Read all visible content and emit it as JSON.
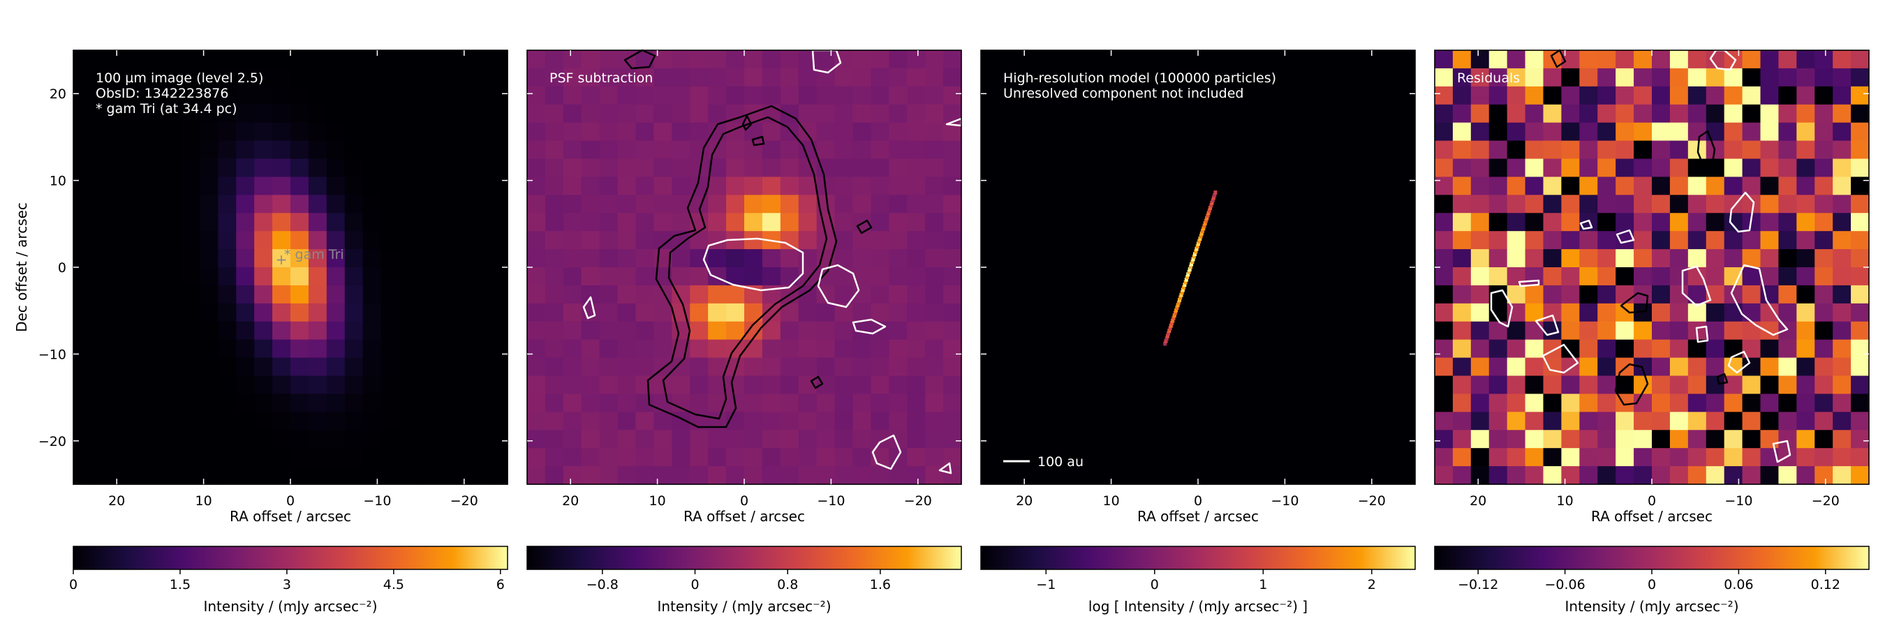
{
  "figure": {
    "ylabel": "Dec offset / arcsec",
    "xlabel": "RA offset / arcsec",
    "xticks": [
      20,
      10,
      0,
      -10,
      -20
    ],
    "yticks": [
      20,
      10,
      0,
      -10,
      -20
    ],
    "xlim": [
      25,
      -25
    ],
    "ylim": [
      -25,
      25
    ]
  },
  "panels": [
    {
      "id": "image",
      "annotation_lines": [
        "100 µm image (level 2.5)",
        "ObsID: 1342223876",
        "* gam Tri (at 34.4 pc)"
      ],
      "marker_label": "* gam Tri",
      "colorbar": {
        "label": "Intensity / (mJy arcsec⁻²)",
        "ticks": [
          "0",
          "1.5",
          "3",
          "4.5",
          "6"
        ],
        "range": [
          0,
          6.1
        ]
      }
    },
    {
      "id": "psf-subtraction",
      "annotation_lines": [
        "PSF subtraction"
      ],
      "colorbar": {
        "label": "Intensity / (mJy arcsec⁻²)",
        "ticks": [
          "-0.8",
          "0",
          "0.8",
          "1.6"
        ],
        "range": [
          -1.45,
          2.3
        ]
      }
    },
    {
      "id": "model",
      "annotation_lines": [
        "High-resolution model (100000 particles)",
        "Unresolved component not included"
      ],
      "scalebar_label": "100 au",
      "colorbar": {
        "label": "log [ Intensity / (mJy arcsec⁻²) ]",
        "ticks": [
          "-1",
          "0",
          "1",
          "2"
        ],
        "range": [
          -1.6,
          2.4
        ]
      }
    },
    {
      "id": "residuals",
      "annotation_lines": [
        "Residuals"
      ],
      "colorbar": {
        "label": "Intensity / (mJy arcsec⁻²)",
        "ticks": [
          "-0.12",
          "-0.06",
          "0",
          "0.06",
          "0.12"
        ],
        "range": [
          -0.15,
          0.15
        ]
      }
    }
  ],
  "chart_data": [
    {
      "type": "heatmap",
      "title": "100 µm image (level 2.5)",
      "xlabel": "RA offset / arcsec",
      "ylabel": "Dec offset / arcsec",
      "xlim": [
        25,
        -25
      ],
      "ylim": [
        -25,
        25
      ],
      "peak": {
        "ra": 0,
        "dec": 0,
        "value": 6
      },
      "source_shape": {
        "sigma_ra": 3.2,
        "sigma_dec": 6.5,
        "tilt_deg": 15
      }
    },
    {
      "type": "heatmap",
      "title": "PSF subtraction",
      "xlim": [
        25,
        -25
      ],
      "ylim": [
        -25,
        25
      ],
      "peaks": [
        {
          "ra": -2.5,
          "dec": 5.5,
          "value": 2.2
        },
        {
          "ra": 2,
          "dec": -5.5,
          "value": 2.2
        }
      ],
      "trough": {
        "ra": 0,
        "dec": 0,
        "value": -1.4
      }
    },
    {
      "type": "heatmap",
      "title": "High-resolution model (100000 particles)",
      "xlim": [
        25,
        -25
      ],
      "ylim": [
        -25,
        25
      ],
      "disc_endpoints": [
        {
          "ra": 3.8,
          "dec": -8.8
        },
        {
          "ra": -2.0,
          "dec": 8.6
        }
      ],
      "scale_bar_au": 100
    },
    {
      "type": "heatmap",
      "title": "Residuals",
      "xlim": [
        25,
        -25
      ],
      "ylim": [
        -25,
        25
      ],
      "value_range": [
        -0.15,
        0.15
      ]
    }
  ]
}
